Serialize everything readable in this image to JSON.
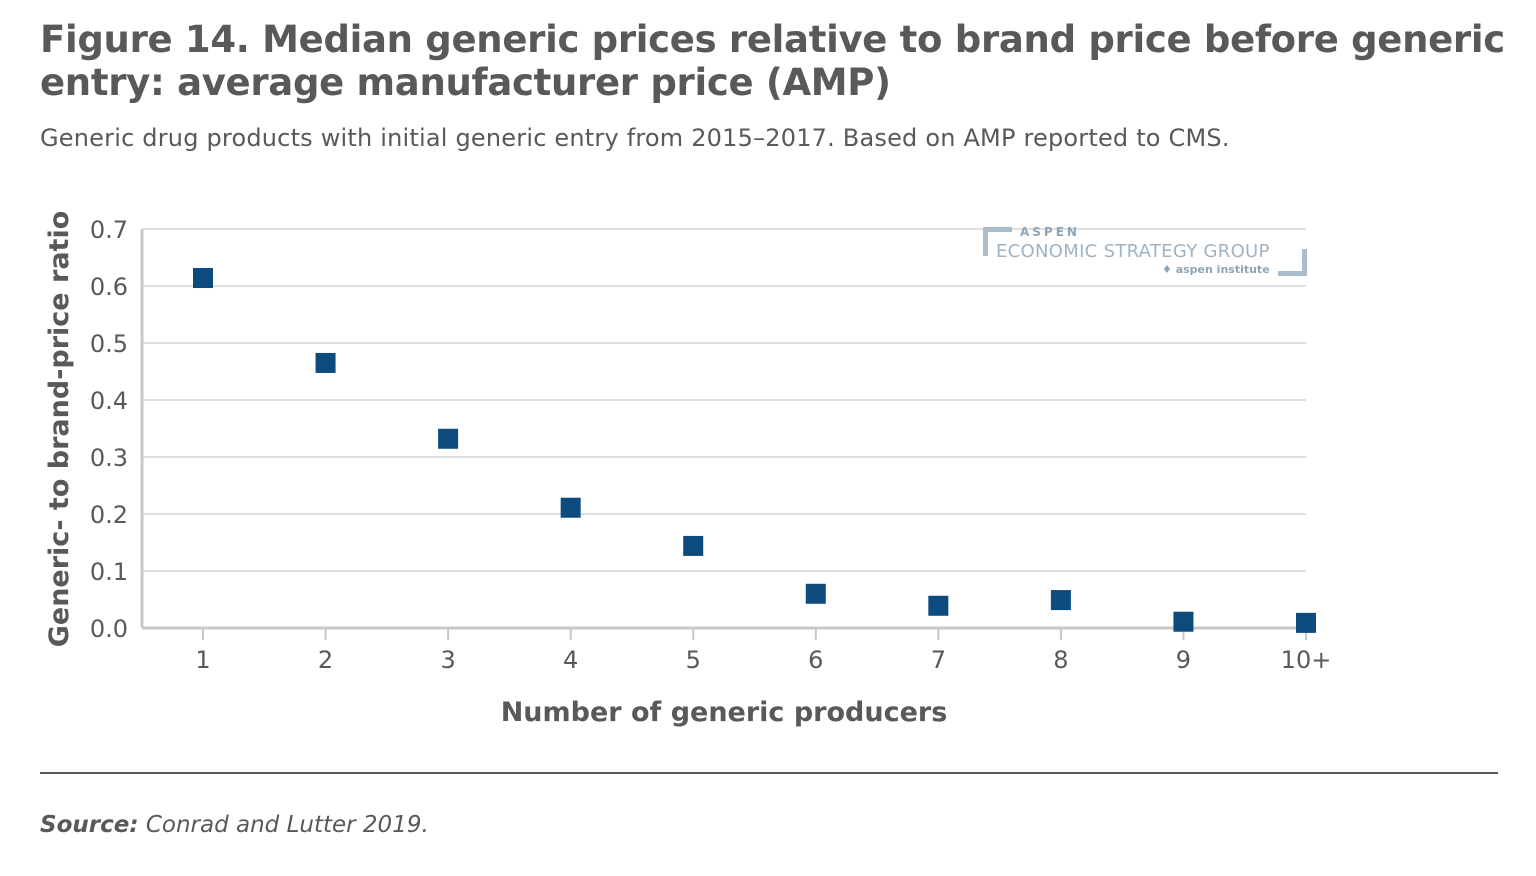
{
  "title": "Figure 14. Median generic prices relative to brand price before generic entry: average manufacturer price (AMP)",
  "subtitle": "Generic drug products with initial generic entry from 2015–2017. Based on AMP reported to CMS.",
  "source_label": "Source:",
  "source_text": "Conrad and Lutter 2019.",
  "logo": {
    "line1": "ASPEN",
    "line2": "ECONOMIC STRATEGY GROUP",
    "line3": "aspen institute"
  },
  "chart_data": {
    "type": "scatter",
    "categories": [
      "1",
      "2",
      "3",
      "4",
      "5",
      "6",
      "7",
      "8",
      "9",
      "10+"
    ],
    "values": [
      0.614,
      0.465,
      0.332,
      0.211,
      0.144,
      0.06,
      0.039,
      0.049,
      0.011,
      0.009
    ],
    "xlabel": "Number of generic producers",
    "ylabel": "Generic- to brand-price ratio",
    "ylim": [
      0,
      0.7
    ],
    "yticks": [
      "0.0",
      "0.1",
      "0.2",
      "0.3",
      "0.4",
      "0.5",
      "0.6",
      "0.7"
    ],
    "grid": true,
    "marker": "square",
    "color": "#0d4a7e"
  }
}
